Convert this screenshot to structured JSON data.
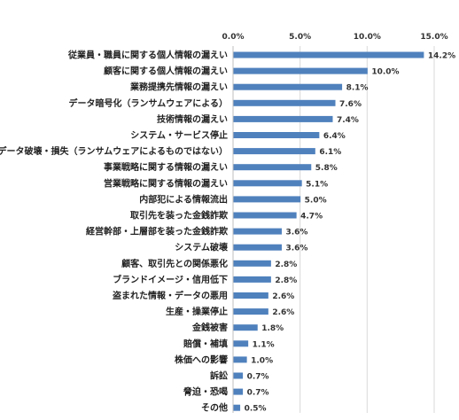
{
  "chart_data": {
    "type": "bar",
    "orientation": "horizontal",
    "categories": [
      "従業員・職員に関する個人情報の漏えい",
      "顧客に関する個人情報の漏えい",
      "業務提携先情報の漏えい",
      "データ暗号化（ランサムウェアによる）",
      "技術情報の漏えい",
      "システム・サービス停止",
      "データ破壊・損失（ランサムウェアによるものではない）",
      "事業戦略に関する情報の漏えい",
      "営業戦略に関する情報の漏えい",
      "内部犯による情報流出",
      "取引先を装った金銭詐欺",
      "経営幹部・上層部を装った金銭詐欺",
      "システム破壊",
      "顧客、取引先との関係悪化",
      "ブランドイメージ・信用低下",
      "盗まれた情報・データの悪用",
      "生産・操業停止",
      "金銭被害",
      "賠償・補填",
      "株価への影響",
      "訴訟",
      "脅迫・恐喝",
      "その他"
    ],
    "values": [
      14.2,
      10.0,
      8.1,
      7.6,
      7.4,
      6.4,
      6.1,
      5.8,
      5.1,
      5.0,
      4.7,
      3.6,
      3.6,
      2.8,
      2.8,
      2.6,
      2.6,
      1.8,
      1.1,
      1.0,
      0.7,
      0.7,
      0.5
    ],
    "value_labels": [
      "14.2%",
      "10.0%",
      "8.1%",
      "7.6%",
      "7.4%",
      "6.4%",
      "6.1%",
      "5.8%",
      "5.1%",
      "5.0%",
      "4.7%",
      "3.6%",
      "3.6%",
      "2.8%",
      "2.8%",
      "2.6%",
      "2.6%",
      "1.8%",
      "1.1%",
      "1.0%",
      "0.7%",
      "0.7%",
      "0.5%"
    ],
    "xlim": [
      0,
      15
    ],
    "xticks": [
      0,
      5,
      10,
      15
    ],
    "xtick_labels": [
      "0.0%",
      "5.0%",
      "10.0%",
      "15.0%"
    ],
    "axis_position": "top",
    "grid": true,
    "bar_color": "#4F81BD",
    "grid_color": "#D9D9D9"
  }
}
